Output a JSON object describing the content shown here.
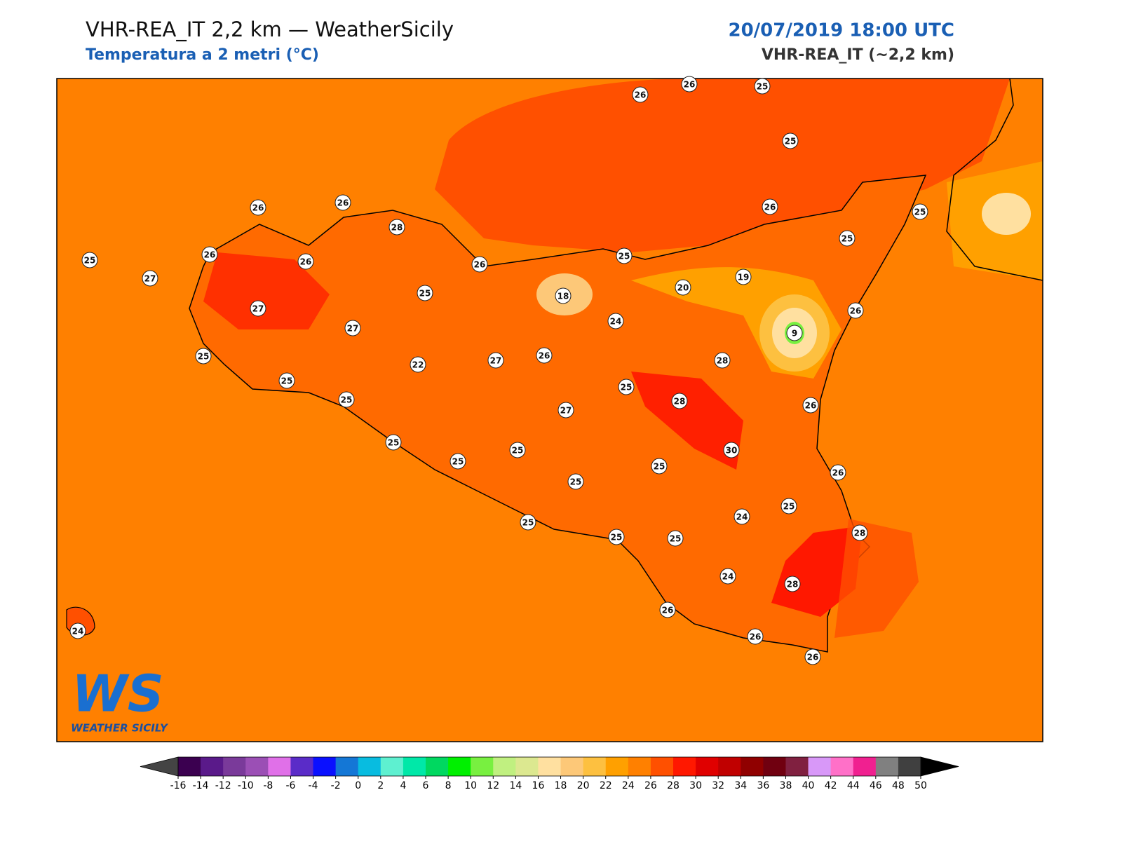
{
  "header": {
    "title": "VHR-REA_IT 2,2 km — WeatherSicily",
    "subtitle": "Temperatura a 2 metri (°C)",
    "datetime": "20/07/2019 18:00 UTC",
    "model": "VHR-REA_IT (~2,2 km)"
  },
  "stations": [
    26,
    26,
    25,
    25,
    26,
    26,
    28,
    26,
    25,
    25,
    26,
    26,
    27,
    26,
    25,
    25,
    20,
    19,
    25,
    18,
    27,
    24,
    26,
    27,
    9,
    25,
    26,
    27,
    22,
    28,
    25,
    25,
    25,
    28,
    26,
    27,
    25,
    30,
    25,
    25,
    25,
    26,
    25,
    25,
    24,
    25,
    28,
    25,
    25,
    24,
    28,
    26,
    24,
    26,
    26
  ],
  "colorbar": {
    "ticks": [
      -16,
      -14,
      -12,
      -10,
      -8,
      -6,
      -4,
      -2,
      0,
      2,
      4,
      6,
      8,
      10,
      12,
      14,
      16,
      18,
      20,
      22,
      24,
      26,
      28,
      30,
      32,
      34,
      36,
      38,
      40,
      42,
      44,
      46,
      48,
      50
    ],
    "colors": [
      "#3b0050",
      "#5a1a8a",
      "#7a3a9a",
      "#9b4fb5",
      "#e070e8",
      "#5a2cc8",
      "#0a10ff",
      "#1477d6",
      "#08bce0",
      "#5ef0d0",
      "#00e8a8",
      "#00d860",
      "#00f000",
      "#78f040",
      "#c0f080",
      "#dce890",
      "#ffe0a0",
      "#fdc878",
      "#fdc040",
      "#ffa000",
      "#ff8000",
      "#ff5000",
      "#ff1800",
      "#e00000",
      "#c00000",
      "#900000",
      "#700010",
      "#802040",
      "#d898f8",
      "#ff70c8",
      "#f02090",
      "#808080",
      "#404040"
    ],
    "under_color": "#444444",
    "over_color": "#000000"
  },
  "logo": {
    "mark": "WS",
    "text": "WEATHER SICILY"
  }
}
